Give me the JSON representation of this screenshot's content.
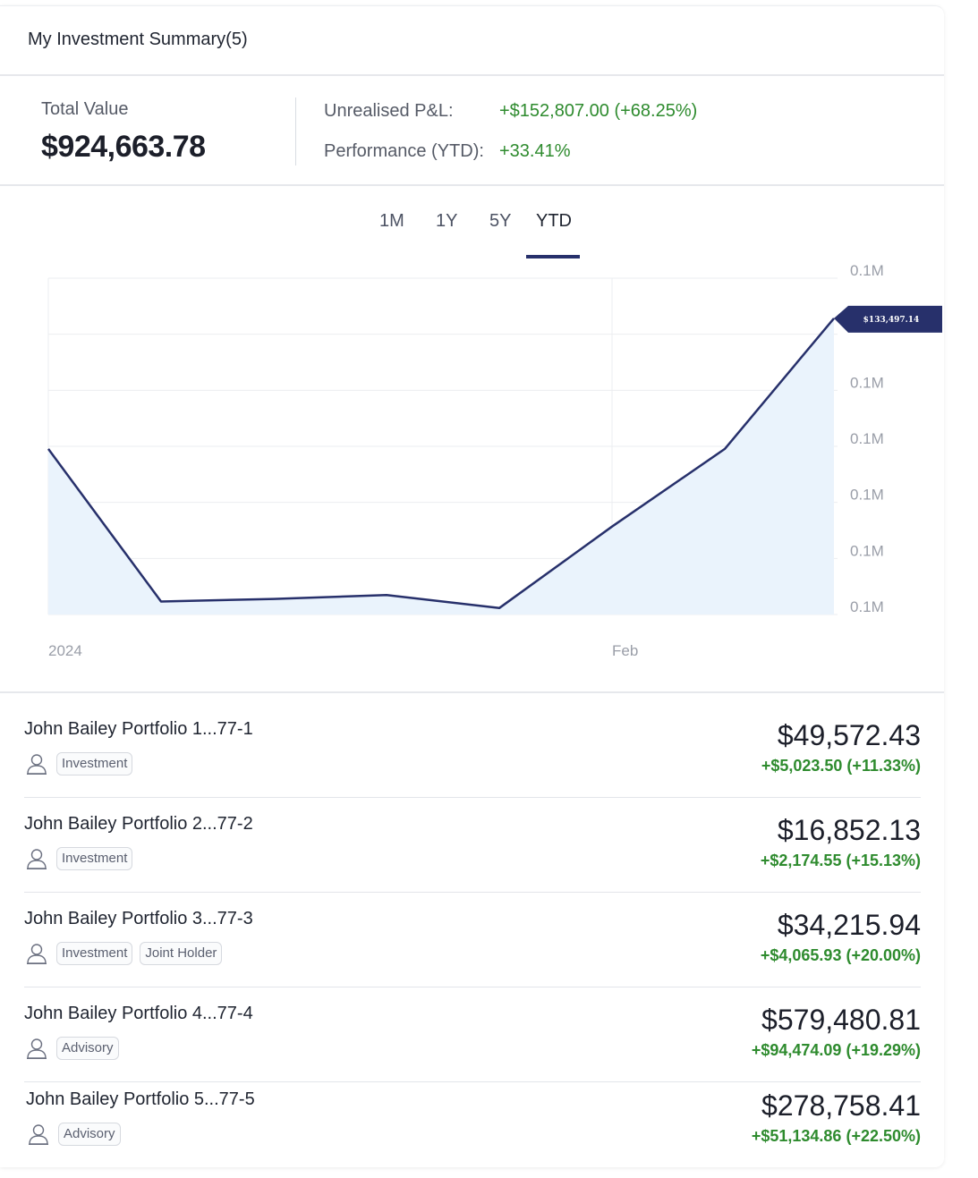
{
  "header": {
    "title": "My Investment Summary(5)"
  },
  "summary": {
    "total_label": "Total Value",
    "total_value": "$924,663.78",
    "unrealised_label": "Unrealised P&L:",
    "unrealised_value": "+$152,807.00 (+68.25%)",
    "performance_label": "Performance (YTD):",
    "performance_value": "+33.41%"
  },
  "tabs": [
    {
      "label": "1M",
      "active": false
    },
    {
      "label": "1Y",
      "active": false
    },
    {
      "label": "5Y",
      "active": false
    },
    {
      "label": "YTD",
      "active": true
    }
  ],
  "colors": {
    "line": "#27306b",
    "fill": "#eaf3fc",
    "positive": "#2e8b2e",
    "tooltip_bg": "#27306b"
  },
  "chart_data": {
    "type": "area",
    "x_tick_labels": [
      "2024",
      "Feb"
    ],
    "y_tick_labels": [
      "0.1M",
      "0.1M",
      "0.1M",
      "0.1M",
      "0.1M",
      "0.1M",
      "0.1M"
    ],
    "tooltip_value": "$133,497.14",
    "values": [
      123400,
      111600,
      111800,
      112100,
      111100,
      117400,
      123400,
      133497.14
    ],
    "ylim": [
      110600,
      136600
    ],
    "grid": true
  },
  "accounts": [
    {
      "name": "John Bailey Portfolio 1...77-1",
      "tags": [
        "Investment"
      ],
      "value": "$49,572.43",
      "change": "+$5,023.50 (+11.33%)"
    },
    {
      "name": "John Bailey Portfolio 2...77-2",
      "tags": [
        "Investment"
      ],
      "value": "$16,852.13",
      "change": "+$2,174.55 (+15.13%)"
    },
    {
      "name": "John Bailey Portfolio 3...77-3",
      "tags": [
        "Investment",
        "Joint Holder"
      ],
      "value": "$34,215.94",
      "change": "+$4,065.93 (+20.00%)"
    },
    {
      "name": "John Bailey Portfolio 4...77-4",
      "tags": [
        "Advisory"
      ],
      "value": "$579,480.81",
      "change": "+$94,474.09 (+19.29%)"
    },
    {
      "name": "John Bailey Portfolio 5...77-5",
      "tags": [
        "Advisory"
      ],
      "value": "$278,758.41",
      "change": "+$51,134.86 (+22.50%)"
    }
  ]
}
